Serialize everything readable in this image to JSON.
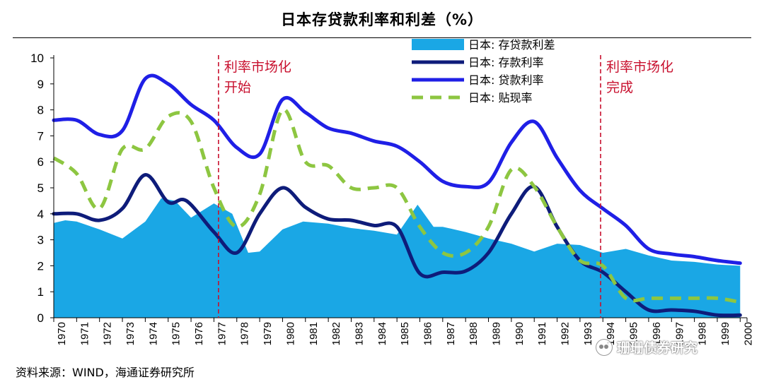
{
  "page": {
    "title": "日本存贷款利率和利差（%）",
    "source": "资料来源：WIND，海通证券研究所",
    "watermark": "珊珊债券研究"
  },
  "chart_data": {
    "type": "line",
    "title": "日本存贷款利率和利差（%）",
    "xlabel": "",
    "ylabel": "",
    "x_range": [
      1970,
      2000.3
    ],
    "ylim": [
      0,
      10
    ],
    "yticks": [
      0,
      1,
      2,
      3,
      4,
      5,
      6,
      7,
      8,
      9,
      10
    ],
    "categories": [
      "1970",
      "1971",
      "1972",
      "1973",
      "1974",
      "1975",
      "1976",
      "1977",
      "1978",
      "1979",
      "1980",
      "1981",
      "1982",
      "1983",
      "1984",
      "1985",
      "1986",
      "1987",
      "1988",
      "1989",
      "1990",
      "1991",
      "1992",
      "1993",
      "1994",
      "1995",
      "1996",
      "1997",
      "1998",
      "1999",
      "2000"
    ],
    "grid": false,
    "legend_position": "top-center",
    "series": [
      {
        "name": "日本: 存贷款利差",
        "kind": "area",
        "color": "#1AA7E5",
        "x": [
          1970,
          1970.5,
          1971,
          1972,
          1973,
          1974,
          1974.7,
          1975.3,
          1976,
          1977,
          1977.8,
          1978.5,
          1979,
          1980,
          1980.9,
          1982,
          1983,
          1984,
          1985,
          1985.9,
          1986.6,
          1987,
          1988,
          1989,
          1990,
          1991,
          1992,
          1993,
          1994,
          1995,
          1996,
          1997,
          1998,
          1999,
          2000
        ],
        "values": [
          3.65,
          3.75,
          3.7,
          3.4,
          3.05,
          3.7,
          4.6,
          4.5,
          3.85,
          4.4,
          4.0,
          2.5,
          2.55,
          3.4,
          3.7,
          3.62,
          3.45,
          3.35,
          3.2,
          4.35,
          3.5,
          3.5,
          3.3,
          3.05,
          2.85,
          2.55,
          2.85,
          2.8,
          2.5,
          2.65,
          2.4,
          2.2,
          2.15,
          2.05,
          2.0
        ]
      },
      {
        "name": "日本: 存款利率",
        "kind": "line",
        "color": "#0E1C7A",
        "x": [
          1970,
          1971,
          1972,
          1973,
          1974,
          1975,
          1975.8,
          1977,
          1978,
          1979,
          1980,
          1981,
          1982,
          1983,
          1984,
          1985,
          1986,
          1987,
          1988,
          1989,
          1990,
          1991,
          1992,
          1993,
          1994,
          1995,
          1996,
          1997,
          1998,
          1999,
          2000
        ],
        "values": [
          4.0,
          4.0,
          3.75,
          4.2,
          5.5,
          4.45,
          4.5,
          3.3,
          2.5,
          4.0,
          5.0,
          4.25,
          3.8,
          3.75,
          3.55,
          3.5,
          1.7,
          1.75,
          1.8,
          2.5,
          4.0,
          5.05,
          3.5,
          2.2,
          1.75,
          1.0,
          0.3,
          0.3,
          0.25,
          0.1,
          0.1
        ]
      },
      {
        "name": "日本: 贷款利率",
        "kind": "line",
        "color": "#1F1FE6",
        "x": [
          1970,
          1971,
          1972,
          1973,
          1974,
          1975,
          1976,
          1977,
          1978,
          1979,
          1980,
          1981,
          1982,
          1983,
          1984,
          1985,
          1986,
          1987,
          1988,
          1989,
          1990,
          1991,
          1992,
          1993,
          1994,
          1995,
          1996,
          1997,
          1998,
          1999,
          2000
        ],
        "values": [
          7.6,
          7.6,
          7.05,
          7.2,
          9.2,
          9.0,
          8.2,
          7.6,
          6.55,
          6.3,
          8.4,
          7.9,
          7.3,
          7.1,
          6.8,
          6.6,
          6.0,
          5.25,
          5.05,
          5.2,
          6.75,
          7.55,
          6.15,
          4.9,
          4.2,
          3.55,
          2.65,
          2.45,
          2.35,
          2.2,
          2.1
        ]
      },
      {
        "name": "日本: 贴现率",
        "kind": "line-dashed",
        "color": "#8DC641",
        "x": [
          1970,
          1971,
          1972,
          1973,
          1974,
          1975,
          1976,
          1977,
          1978,
          1979,
          1980,
          1981,
          1982,
          1983,
          1984,
          1985,
          1986,
          1987,
          1988,
          1989,
          1990,
          1991,
          1992,
          1993,
          1994,
          1995,
          1996,
          1997,
          1998,
          1999,
          2000
        ],
        "values": [
          6.15,
          5.55,
          4.2,
          6.5,
          6.5,
          7.75,
          7.55,
          5.0,
          3.5,
          4.75,
          8.0,
          6.0,
          5.85,
          5.0,
          5.0,
          5.0,
          3.5,
          2.5,
          2.5,
          3.5,
          5.7,
          5.05,
          3.5,
          2.2,
          2.0,
          0.75,
          0.75,
          0.75,
          0.75,
          0.75,
          0.6
        ]
      }
    ],
    "annotations": [
      {
        "x": 1977.2,
        "line1": "利率市场化",
        "line2": "开始",
        "color": "#C8102E"
      },
      {
        "x": 1993.9,
        "line1": "利率市场化",
        "line2": "完成",
        "color": "#C8102E"
      }
    ]
  }
}
